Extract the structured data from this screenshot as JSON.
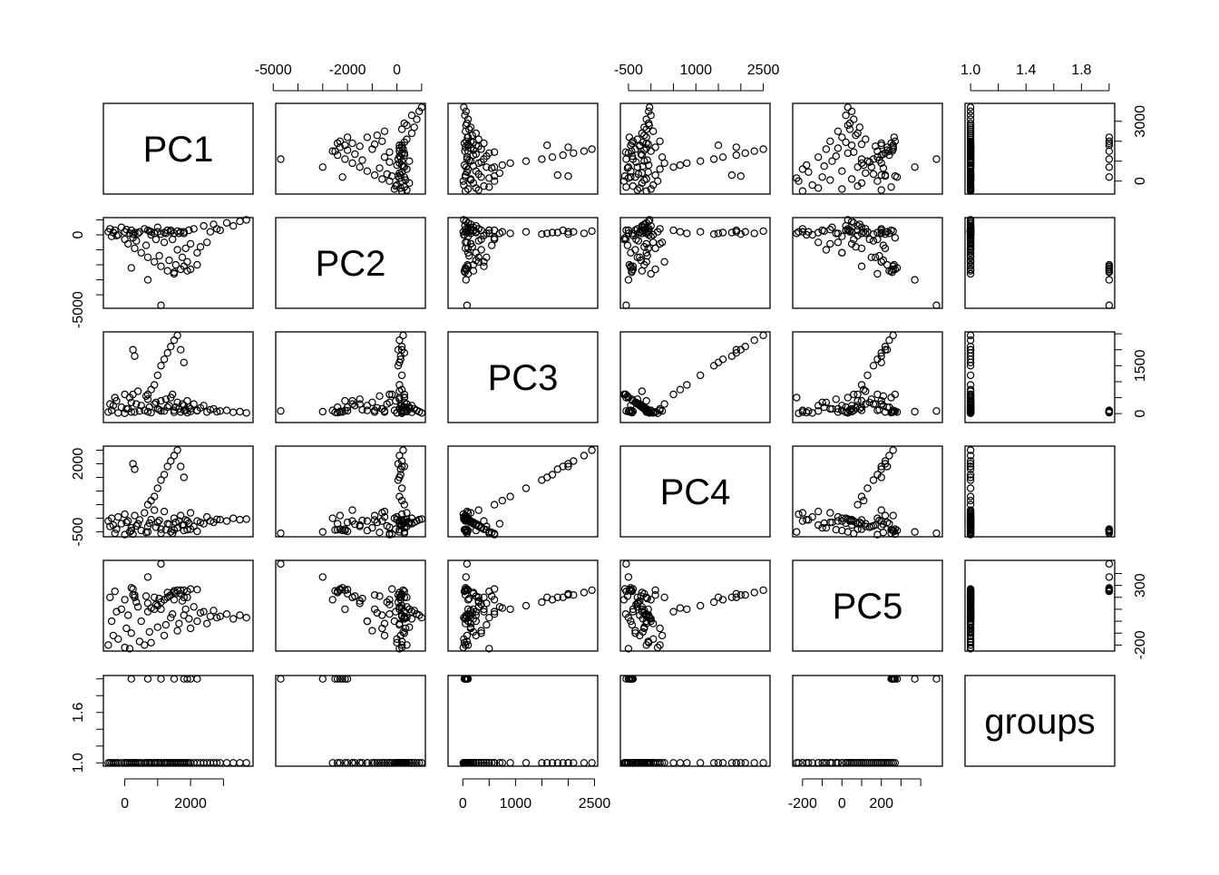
{
  "chart_data": {
    "type": "scatter",
    "subtype": "pairs-matrix",
    "variables": [
      "PC1",
      "PC2",
      "PC3",
      "PC4",
      "PC5",
      "groups"
    ],
    "ranges": {
      "PC1": [
        -650,
        3900
      ],
      "PC2": [
        -4900,
        1150
      ],
      "PC3": [
        -280,
        2560
      ],
      "PC4": [
        -680,
        2650
      ],
      "PC5": [
        -250,
        510
      ],
      "groups": [
        0.96,
        2.04
      ]
    },
    "axes": {
      "PC1": {
        "ticks": [
          0,
          1000,
          2000,
          3000
        ],
        "col_labels": [
          "0",
          "2000"
        ],
        "row_labels": [
          "0",
          "3000"
        ],
        "col_side": "bottom",
        "row_side": "right"
      },
      "PC2": {
        "ticks": [
          -5000,
          -4000,
          -3000,
          -2000,
          -1000,
          0,
          1000
        ],
        "col_labels": [
          "-5000",
          "-2000",
          "0"
        ],
        "row_labels": [
          "-5000",
          "0"
        ],
        "col_side": "top",
        "row_side": "left"
      },
      "PC3": {
        "ticks": [
          0,
          500,
          1000,
          1500,
          2000,
          2500
        ],
        "col_labels": [
          "0",
          "1000",
          "2500"
        ],
        "row_labels": [
          "0",
          "1500"
        ],
        "col_side": "bottom",
        "row_side": "right"
      },
      "PC4": {
        "ticks": [
          -500,
          0,
          500,
          1000,
          1500,
          2000,
          2500
        ],
        "col_labels": [
          "-500",
          "1000",
          "2500"
        ],
        "row_labels": [
          "-500",
          "2000"
        ],
        "col_side": "top",
        "row_side": "left"
      },
      "PC5": {
        "ticks": [
          -200,
          -100,
          0,
          100,
          200,
          300,
          400
        ],
        "col_labels": [
          "-200",
          "0",
          "200"
        ],
        "row_labels": [
          "-200",
          "300"
        ],
        "col_side": "bottom",
        "row_side": "right"
      },
      "groups": {
        "ticks": [
          1.0,
          1.2,
          1.4,
          1.6,
          1.8,
          2.0
        ],
        "col_labels": [
          "1.0",
          "1.4",
          "1.8"
        ],
        "row_labels": [
          "1.0",
          "1.6"
        ],
        "col_side": "top",
        "row_side": "left"
      }
    },
    "observations_columns": [
      "PC1",
      "PC2",
      "PC3",
      "PC4",
      "PC5",
      "groups"
    ],
    "observations": [
      [
        -500,
        200,
        50,
        -100,
        -200,
        1
      ],
      [
        -450,
        400,
        300,
        -300,
        200,
        1
      ],
      [
        -400,
        -100,
        100,
        0,
        0,
        1
      ],
      [
        -300,
        300,
        500,
        -550,
        250,
        1
      ],
      [
        -200,
        0,
        20,
        50,
        -150,
        1
      ],
      [
        -100,
        500,
        200,
        -200,
        100,
        1
      ],
      [
        0,
        -300,
        600,
        -600,
        180,
        1
      ],
      [
        0,
        200,
        10,
        150,
        -220,
        1
      ],
      [
        100,
        -600,
        150,
        -100,
        50,
        1
      ],
      [
        200,
        300,
        350,
        -350,
        -100,
        1
      ],
      [
        300,
        -900,
        50,
        100,
        220,
        1
      ],
      [
        400,
        100,
        700,
        -200,
        120,
        1
      ],
      [
        500,
        -1200,
        250,
        -450,
        0,
        1
      ],
      [
        600,
        400,
        100,
        200,
        -200,
        1
      ],
      [
        700,
        -1500,
        450,
        -300,
        150,
        1
      ],
      [
        800,
        0,
        30,
        -50,
        -180,
        1
      ],
      [
        900,
        -1800,
        300,
        300,
        200,
        1
      ],
      [
        1000,
        500,
        150,
        -150,
        -50,
        1
      ],
      [
        1100,
        -2100,
        400,
        -400,
        100,
        1
      ],
      [
        1200,
        -500,
        80,
        250,
        -120,
        1
      ],
      [
        1300,
        -2400,
        200,
        -200,
        240,
        1
      ],
      [
        1400,
        300,
        500,
        -500,
        30,
        1
      ],
      [
        1500,
        -2600,
        100,
        0,
        180,
        1
      ],
      [
        1600,
        -1000,
        350,
        -350,
        -80,
        1
      ],
      [
        1700,
        -2300,
        50,
        100,
        260,
        1
      ],
      [
        1800,
        200,
        250,
        -250,
        50,
        1
      ],
      [
        1900,
        -1800,
        400,
        -100,
        200,
        1
      ],
      [
        2000,
        -600,
        150,
        200,
        -60,
        1
      ],
      [
        2100,
        400,
        300,
        -300,
        120,
        1
      ],
      [
        2200,
        -1200,
        100,
        -100,
        0,
        1
      ],
      [
        2400,
        600,
        250,
        -200,
        80,
        1
      ],
      [
        2500,
        -500,
        50,
        50,
        -20,
        1
      ],
      [
        2700,
        700,
        150,
        -150,
        90,
        1
      ],
      [
        2900,
        300,
        80,
        -50,
        40,
        1
      ],
      [
        3100,
        800,
        100,
        -100,
        60,
        1
      ],
      [
        3300,
        600,
        40,
        0,
        20,
        1
      ],
      [
        3500,
        900,
        60,
        -50,
        50,
        1
      ],
      [
        3700,
        1000,
        20,
        -30,
        30,
        1
      ],
      [
        150,
        100,
        500,
        -500,
        -230,
        1
      ],
      [
        250,
        -200,
        600,
        -580,
        270,
        1
      ],
      [
        -350,
        150,
        250,
        -250,
        -120,
        1
      ],
      [
        -250,
        -50,
        400,
        -400,
        80,
        1
      ],
      [
        50,
        350,
        150,
        -150,
        -60,
        1
      ],
      [
        350,
        -400,
        300,
        -280,
        160,
        1
      ],
      [
        450,
        200,
        80,
        -60,
        -170,
        1
      ],
      [
        650,
        -700,
        550,
        -520,
        210,
        1
      ],
      [
        750,
        250,
        200,
        -180,
        -90,
        1
      ],
      [
        950,
        -300,
        350,
        -330,
        140,
        1
      ],
      [
        1050,
        -1400,
        120,
        -80,
        190,
        1
      ],
      [
        1250,
        100,
        450,
        -420,
        -30,
        1
      ],
      [
        1350,
        -1700,
        250,
        -220,
        210,
        1
      ],
      [
        1450,
        -300,
        600,
        -560,
        60,
        1
      ],
      [
        1550,
        -2000,
        200,
        -150,
        230,
        1
      ],
      [
        1650,
        100,
        150,
        -100,
        -20,
        1
      ],
      [
        1750,
        -1500,
        300,
        -250,
        170,
        1
      ],
      [
        1850,
        -900,
        100,
        -60,
        100,
        1
      ],
      [
        1950,
        300,
        200,
        -180,
        20,
        1
      ],
      [
        2300,
        -800,
        180,
        -150,
        70,
        1
      ],
      [
        2600,
        200,
        120,
        -100,
        40,
        1
      ],
      [
        2800,
        400,
        60,
        -40,
        30,
        1
      ],
      [
        900,
        100,
        900,
        800,
        100,
        1
      ],
      [
        1000,
        200,
        1200,
        1100,
        130,
        1
      ],
      [
        1100,
        50,
        1500,
        1400,
        160,
        1
      ],
      [
        1200,
        150,
        1700,
        1600,
        180,
        1
      ],
      [
        1300,
        300,
        1900,
        1900,
        200,
        1
      ],
      [
        1400,
        200,
        2100,
        2100,
        220,
        1
      ],
      [
        1500,
        100,
        2300,
        2300,
        240,
        1
      ],
      [
        1600,
        250,
        2450,
        2500,
        260,
        1
      ],
      [
        300,
        150,
        1800,
        1800,
        200,
        1
      ],
      [
        250,
        50,
        2000,
        2000,
        220,
        1
      ],
      [
        1700,
        200,
        2000,
        1900,
        230,
        1
      ],
      [
        1800,
        100,
        1600,
        1500,
        200,
        1
      ],
      [
        700,
        300,
        600,
        500,
        80,
        1
      ],
      [
        800,
        200,
        750,
        650,
        110,
        1
      ],
      [
        1100,
        -4700,
        80,
        -550,
        480,
        2
      ],
      [
        700,
        -3000,
        60,
        -500,
        370,
        2
      ],
      [
        200,
        -2200,
        50,
        -450,
        280,
        2
      ],
      [
        1800,
        -2100,
        100,
        -450,
        260,
        2
      ],
      [
        2000,
        -2300,
        70,
        -400,
        270,
        2
      ],
      [
        1900,
        -2400,
        30,
        -420,
        250,
        2
      ],
      [
        2200,
        -2000,
        90,
        -480,
        265,
        2
      ],
      [
        1500,
        -2500,
        40,
        -430,
        255,
        2
      ]
    ]
  }
}
